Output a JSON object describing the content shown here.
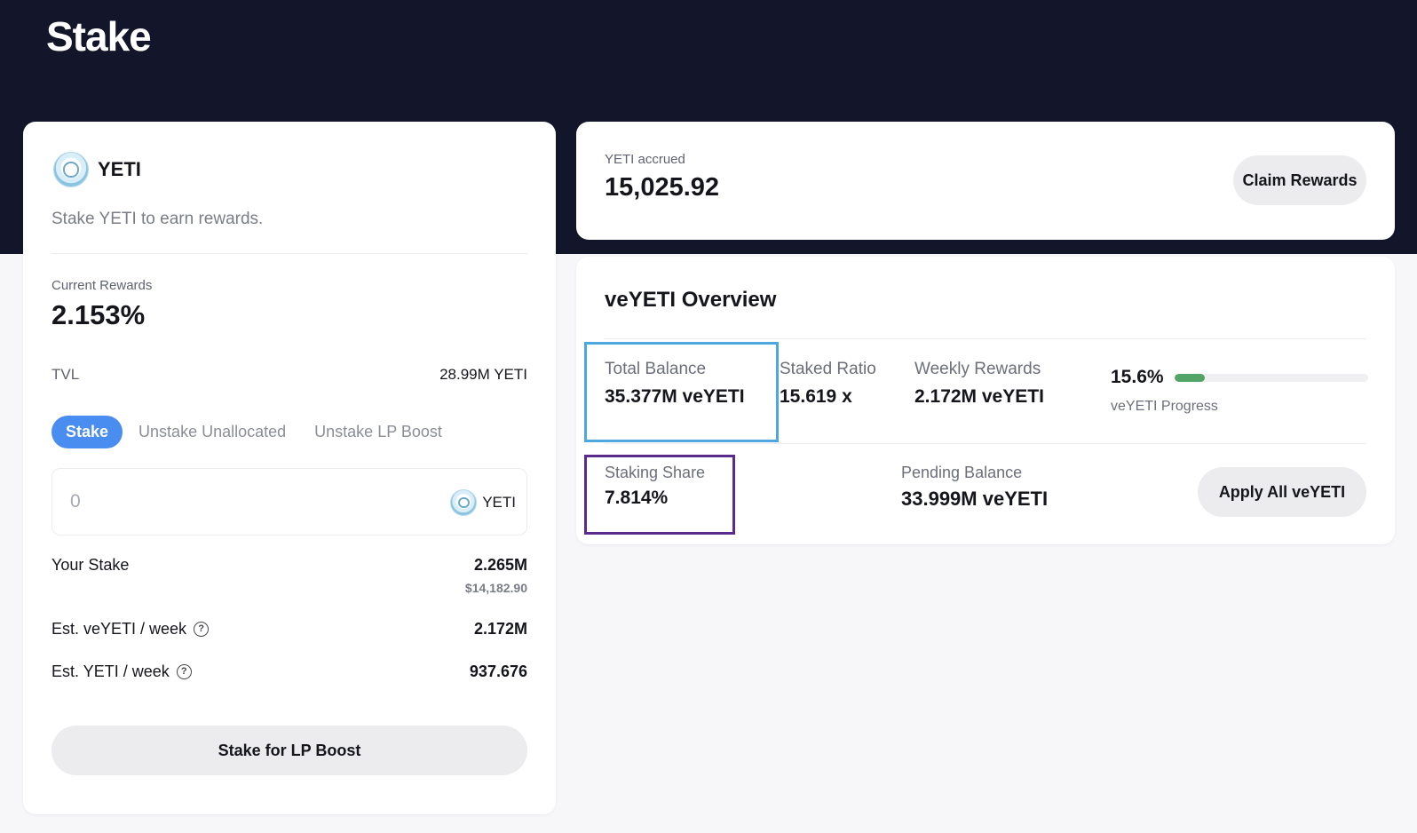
{
  "page": {
    "title": "Stake"
  },
  "stake_card": {
    "token": "YETI",
    "subtitle": "Stake YETI to earn rewards.",
    "current_rewards_label": "Current Rewards",
    "current_rewards_value": "2.153%",
    "tvl_label": "TVL",
    "tvl_value": "28.99M YETI",
    "tabs": [
      {
        "label": "Stake",
        "active": true
      },
      {
        "label": "Unstake Unallocated",
        "active": false
      },
      {
        "label": "Unstake LP Boost",
        "active": false
      }
    ],
    "amount_placeholder": "0",
    "amount_token": "YETI",
    "your_stake_label": "Your Stake",
    "your_stake_value": "2.265M",
    "your_stake_usd": "$14,182.90",
    "est_veyeti_label": "Est. veYETI / week",
    "est_veyeti_value": "2.172M",
    "est_yeti_label": "Est. YETI / week",
    "est_yeti_value": "937.676",
    "help_icon_glyph": "?",
    "lp_boost_button": "Stake for LP Boost"
  },
  "accrued_card": {
    "label": "YETI accrued",
    "value": "15,025.92",
    "claim_button": "Claim Rewards"
  },
  "overview": {
    "title": "veYETI Overview",
    "total_balance_label": "Total Balance",
    "total_balance_value": "35.377M veYETI",
    "staked_ratio_label": "Staked Ratio",
    "staked_ratio_value": "15.619 x",
    "weekly_rewards_label": "Weekly Rewards",
    "weekly_rewards_value": "2.172M veYETI",
    "progress_percent_text": "15.6%",
    "progress_fraction": 0.156,
    "progress_label": "veYETI Progress",
    "staking_share_label": "Staking Share",
    "staking_share_value": "7.814%",
    "pending_balance_label": "Pending Balance",
    "pending_balance_value": "33.999M veYETI",
    "apply_button": "Apply All veYETI"
  },
  "colors": {
    "hero_bg": "#13162a",
    "accent_blue": "#4a8df0",
    "progress_green": "#52a467",
    "highlight_blue": "#4ea7dd",
    "highlight_purple": "#5b2b8c"
  }
}
